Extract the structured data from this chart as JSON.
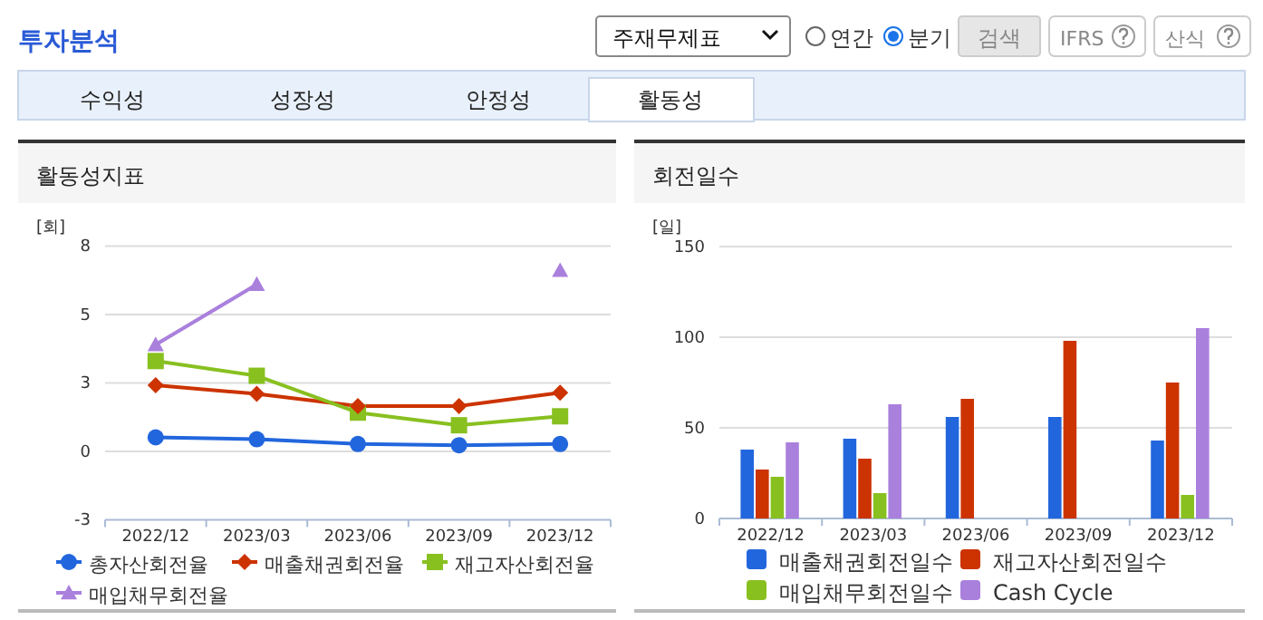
{
  "chart_data": [
    {
      "type": "other",
      "title": "투자분석",
      "annotations": [
        "주재무제표",
        "연간",
        "분기",
        "검색",
        "IFRS",
        "산식",
        "수익성",
        "성장성",
        "안정성",
        "활동성"
      ]
    },
    {
      "type": "line",
      "title": "활동성지표",
      "ylabel": "[회]",
      "categories": [
        "2022/12",
        "2023/03",
        "2023/06",
        "2023/09",
        "2023/12"
      ],
      "ylim": [
        -2.6,
        7.8
      ],
      "yticks": [
        {
          "value": -2.6,
          "label": "-3"
        },
        {
          "value": 0,
          "label": "0"
        },
        {
          "value": 2.6,
          "label": "3"
        },
        {
          "value": 5.2,
          "label": "5"
        },
        {
          "value": 7.8,
          "label": "8"
        }
      ],
      "grid": "y",
      "legend": "bottom",
      "series": [
        {
          "name": "총자산회전율",
          "color": "#2266dd",
          "marker": "circle",
          "values": [
            0.53,
            0.46,
            0.28,
            0.23,
            0.28
          ]
        },
        {
          "name": "매출채권회전율",
          "color": "#cc3300",
          "marker": "diamond",
          "values": [
            2.51,
            2.18,
            1.72,
            1.72,
            2.23
          ]
        },
        {
          "name": "재고자산회전율",
          "color": "#88c020",
          "marker": "square",
          "values": [
            3.43,
            2.87,
            1.47,
            0.99,
            1.33
          ]
        },
        {
          "name": "매입채무회전율",
          "color": "#aa80dd",
          "marker": "triangle",
          "values": [
            4.05,
            6.34,
            null,
            null,
            6.87
          ]
        }
      ]
    },
    {
      "type": "bar",
      "title": "회전일수",
      "ylabel": "[일]",
      "categories": [
        "2022/12",
        "2023/03",
        "2023/06",
        "2023/09",
        "2023/12"
      ],
      "ylim": [
        0,
        150
      ],
      "yticks": [
        0,
        50,
        100,
        150
      ],
      "grid": "y",
      "legend": "bottom",
      "series": [
        {
          "name": "매출채권회전일수",
          "color": "#2266dd",
          "values": [
            38,
            44,
            56,
            56,
            43
          ]
        },
        {
          "name": "재고자산회전일수",
          "color": "#cc3300",
          "values": [
            27,
            33,
            66,
            98,
            75
          ]
        },
        {
          "name": "매입채무회전일수",
          "color": "#88c020",
          "values": [
            23,
            14,
            null,
            null,
            13
          ]
        },
        {
          "name": "Cash Cycle",
          "color": "#aa80dd",
          "values": [
            42,
            63,
            null,
            null,
            105
          ]
        }
      ]
    }
  ]
}
